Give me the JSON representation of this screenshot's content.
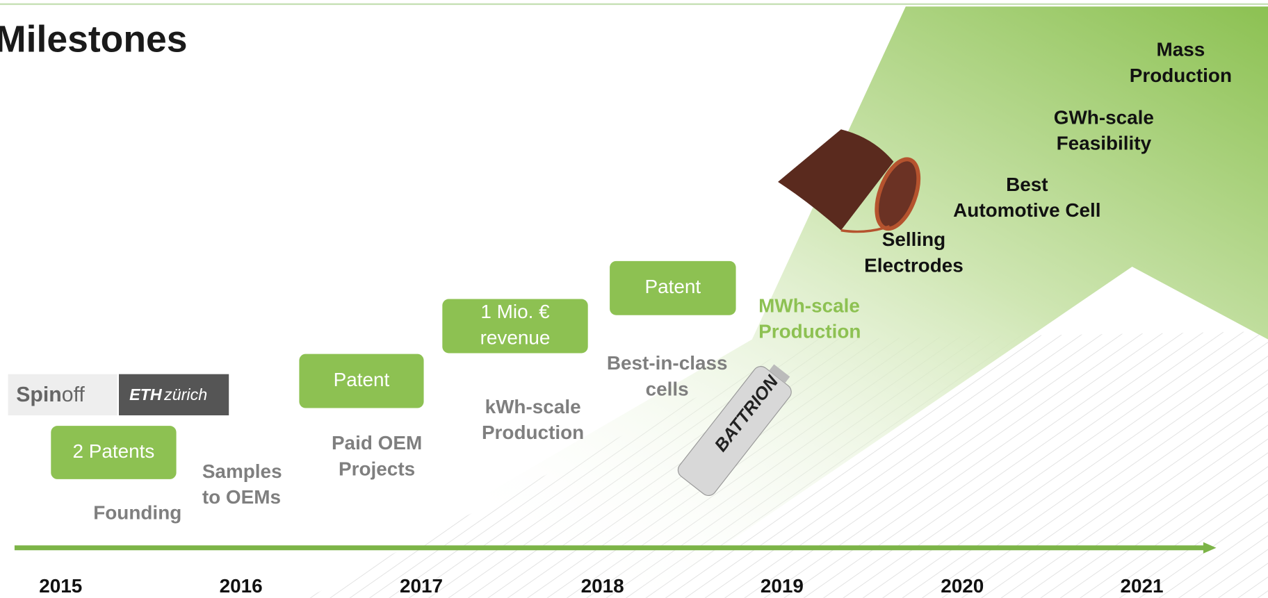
{
  "title": "Milestones",
  "logo": {
    "left": [
      "Spin",
      "off"
    ],
    "right": [
      "ETH",
      "zürich"
    ]
  },
  "years": [
    "2015",
    "2016",
    "2017",
    "2018",
    "2019",
    "2020",
    "2021"
  ],
  "boxes": [
    {
      "lines": [
        "2 Patents"
      ]
    },
    {
      "lines": [
        "Patent"
      ]
    },
    {
      "lines": [
        "1 Mio. €",
        "revenue"
      ]
    },
    {
      "lines": [
        "Patent"
      ]
    }
  ],
  "milestones": [
    {
      "lines": [
        "Founding"
      ]
    },
    {
      "lines": [
        "Samples",
        "to OEMs"
      ]
    },
    {
      "lines": [
        "Paid OEM",
        "Projects"
      ]
    },
    {
      "lines": [
        "kWh-scale",
        "Production"
      ]
    },
    {
      "lines": [
        "Best-in-class",
        "cells"
      ]
    },
    {
      "lines": [
        "MWh-scale",
        "Production"
      ]
    },
    {
      "lines": [
        "Selling",
        "Electrodes"
      ]
    },
    {
      "lines": [
        "Best",
        "Automotive Cell"
      ]
    },
    {
      "lines": [
        "GWh-scale",
        "Feasibility"
      ]
    },
    {
      "lines": [
        "Mass",
        "Production"
      ]
    }
  ],
  "battery_label": "BATTRION"
}
